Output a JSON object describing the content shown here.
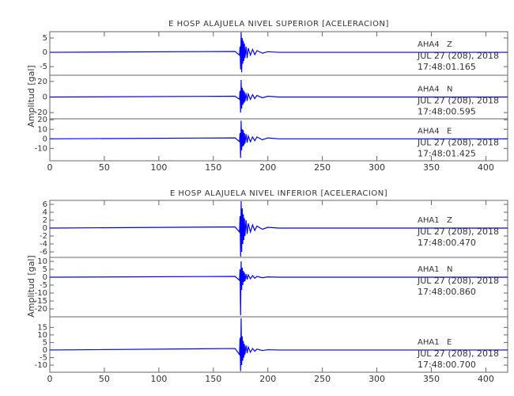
{
  "chart_data": [
    {
      "type": "line",
      "title": "E HOSP ALAJUELA NIVEL SUPERIOR [ACELERACION]",
      "ylabel": "Amplitud [gal]",
      "xlim": [
        0,
        420
      ],
      "xticks": [
        0,
        50,
        100,
        150,
        200,
        250,
        300,
        350,
        400
      ],
      "panels": [
        {
          "station": "AHA4",
          "component": "Z",
          "date": "JUL 27 (208), 2018",
          "time": "17:48:01.165",
          "color": "#0000ff",
          "ylim": [
            -8,
            7.2
          ],
          "yticks": [
            -5,
            0,
            5
          ],
          "x": [
            0,
            170,
            174,
            174.5,
            175,
            175.5,
            176,
            176.5,
            177,
            177.5,
            178,
            178.5,
            179,
            180,
            181,
            182,
            184,
            186,
            188,
            190,
            195,
            200,
            210,
            420
          ],
          "values": [
            0,
            0.3,
            -1,
            2,
            -6,
            7,
            -7,
            5,
            -4,
            4,
            -3,
            3,
            -2,
            2,
            -2,
            1.5,
            -1,
            1,
            -0.8,
            0.6,
            -0.3,
            0.2,
            0,
            0
          ]
        },
        {
          "station": "AHA4",
          "component": "N",
          "date": "JUL 27 (208), 2018",
          "time": "17:48:00.595",
          "color": "#0000ff",
          "ylim": [
            -28,
            28
          ],
          "yticks": [
            -20,
            0,
            20
          ],
          "x": [
            0,
            170,
            174,
            174.5,
            175,
            175.5,
            176,
            176.5,
            177,
            177.5,
            178,
            178.5,
            179,
            180,
            181,
            182,
            184,
            186,
            188,
            190,
            195,
            200,
            210,
            420
          ],
          "values": [
            0,
            1,
            -3,
            8,
            -20,
            22,
            -15,
            12,
            -10,
            9,
            -8,
            7,
            -6,
            5,
            -5,
            4,
            -3,
            3,
            -2,
            2,
            -1,
            1,
            0,
            0
          ]
        },
        {
          "station": "AHA4",
          "component": "E",
          "date": "JUL 27 (208), 2018",
          "time": "17:48:01.425",
          "color": "#0000ff",
          "ylim": [
            -23,
            21
          ],
          "yticks": [
            -10,
            0,
            10,
            20
          ],
          "x": [
            0,
            170,
            174,
            174.5,
            175,
            175.5,
            176,
            176.5,
            177,
            177.5,
            178,
            178.5,
            179,
            180,
            181,
            182,
            184,
            186,
            188,
            190,
            195,
            200,
            210,
            420
          ],
          "values": [
            0,
            1,
            -3,
            6,
            -20,
            19,
            -12,
            10,
            -8,
            9,
            -7,
            6,
            -5,
            5,
            -4,
            3,
            -3,
            2,
            -2,
            2,
            -1,
            1,
            0,
            0
          ]
        }
      ]
    },
    {
      "type": "line",
      "title": "E HOSP ALAJUELA NIVEL INFERIOR [ACELERACION]",
      "ylabel": "Amplitud [gal]",
      "xlim": [
        0,
        420
      ],
      "xticks": [
        0,
        50,
        100,
        150,
        200,
        250,
        300,
        350,
        400
      ],
      "panels": [
        {
          "station": "AHA1",
          "component": "Z",
          "date": "JUL 27 (208), 2018",
          "time": "17:48:00.470",
          "color": "#0000ff",
          "ylim": [
            -7.4,
            7
          ],
          "yticks": [
            -6,
            -4,
            -2,
            0,
            2,
            4,
            6
          ],
          "x": [
            0,
            170,
            174,
            174.5,
            175,
            175.5,
            176,
            176.5,
            177,
            177.5,
            178,
            178.5,
            179,
            180,
            181,
            182,
            184,
            186,
            188,
            190,
            195,
            200,
            210,
            420
          ],
          "values": [
            0,
            0.3,
            -1,
            3,
            -7.2,
            6.8,
            -6,
            5,
            -4,
            3.5,
            -3,
            2.5,
            -2,
            2,
            -1.5,
            1.2,
            -1,
            0.8,
            -0.6,
            0.5,
            -0.3,
            0.2,
            0,
            0
          ]
        },
        {
          "station": "AHA1",
          "component": "N",
          "date": "JUL 27 (208), 2018",
          "time": "17:48:00.860",
          "color": "#0000ff",
          "ylim": [
            -25,
            12.5
          ],
          "yticks": [
            -20,
            -15,
            -10,
            -5,
            0,
            5,
            10
          ],
          "x": [
            0,
            170,
            174,
            174.5,
            175,
            175.5,
            176,
            176.5,
            177,
            177.5,
            178,
            178.5,
            179,
            180,
            181,
            182,
            184,
            186,
            188,
            190,
            195,
            200,
            210,
            420
          ],
          "values": [
            0,
            0.5,
            -2,
            5,
            -24,
            10,
            -8,
            6,
            -5,
            4,
            -3,
            3,
            -2.5,
            2,
            -1.5,
            1.5,
            -1,
            1,
            -0.7,
            0.5,
            -0.3,
            0.2,
            0,
            0
          ]
        },
        {
          "station": "AHA1",
          "component": "E",
          "date": "JUL 27 (208), 2018",
          "time": "17:48:00.700",
          "color": "#0000ff",
          "ylim": [
            -14.7,
            22
          ],
          "yticks": [
            -10,
            -5,
            0,
            5,
            10,
            15
          ],
          "x": [
            0,
            170,
            174,
            174.5,
            175,
            175.5,
            176,
            176.5,
            177,
            177.5,
            178,
            178.5,
            179,
            180,
            181,
            182,
            184,
            186,
            188,
            190,
            195,
            200,
            210,
            420
          ],
          "values": [
            0,
            1,
            -3,
            8,
            -14,
            21,
            -10,
            9,
            -7,
            6,
            -5,
            4,
            -3,
            3,
            -2,
            2,
            -1.5,
            1,
            -0.8,
            0.6,
            -0.3,
            0.2,
            0,
            0
          ]
        }
      ]
    }
  ]
}
